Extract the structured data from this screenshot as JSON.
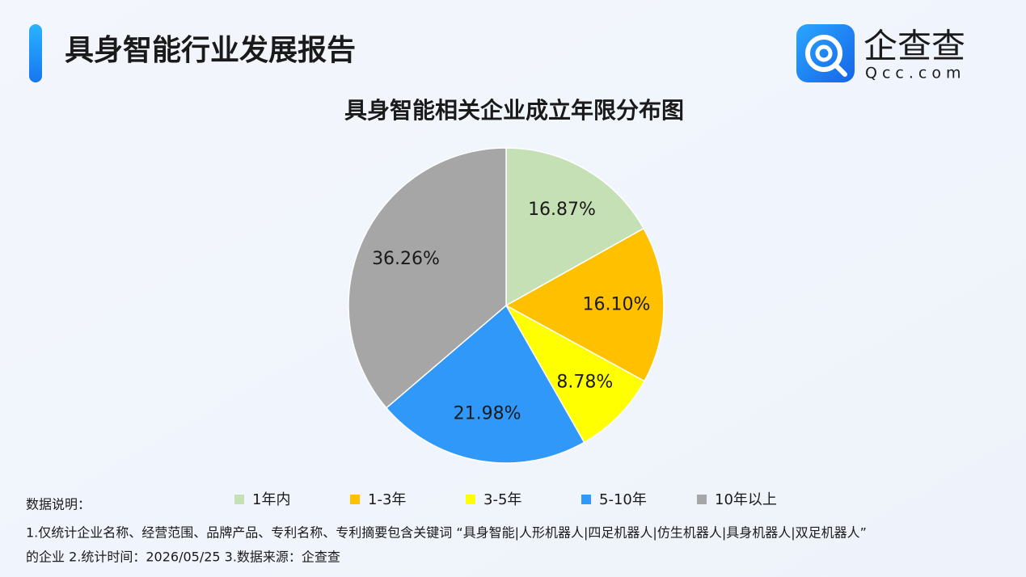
{
  "header": {
    "title": "具身智能行业发展报告",
    "brand": "企查查",
    "domain": "Qcc.com"
  },
  "chart_data": {
    "type": "pie",
    "title": "具身智能相关企业成立年限分布图",
    "categories": [
      "1年内",
      "1-3年",
      "3-5年",
      "5-10年",
      "10年以上"
    ],
    "values": [
      16.87,
      16.1,
      8.78,
      21.98,
      36.26
    ],
    "value_labels": [
      "16.87%",
      "16.10%",
      "8.78%",
      "21.98%",
      "36.26%"
    ],
    "colors": [
      "#c5e0b4",
      "#ffc000",
      "#ffff00",
      "#2f98f8",
      "#a6a6a6"
    ]
  },
  "notes": {
    "label": "数据说明：",
    "lines": [
      "1.仅统计企业名称、经营范围、品牌产品、专利名称、专利摘要包含关键词 “具身智能|人形机器人|四足机器人|仿生机器人|具身机器人|双足机器人”",
      "的企业   2.统计时间：2026/05/25    3.数据来源：企查查"
    ]
  }
}
